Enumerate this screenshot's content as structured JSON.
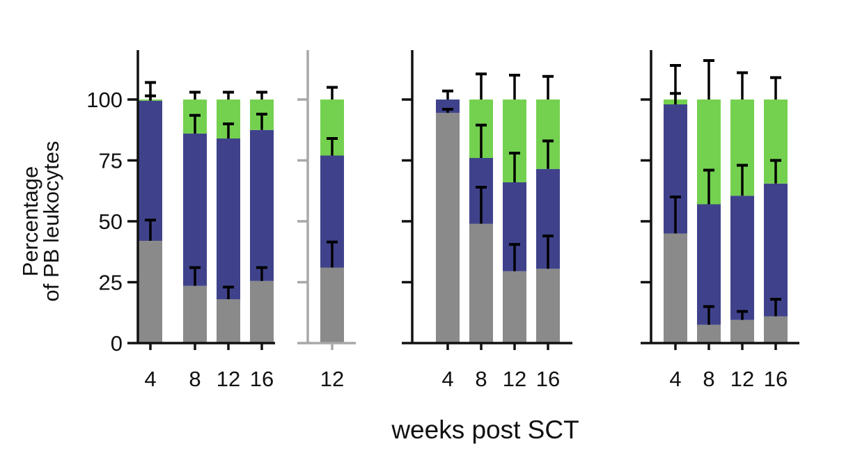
{
  "chart_data": {
    "type": "bar",
    "stacked": true,
    "title": "",
    "ylabel_lines": [
      "Percentage",
      "of PB leukocytes"
    ],
    "xlabel": "weeks post SCT",
    "ylim": [
      0,
      120
    ],
    "yticks": [
      0,
      25,
      50,
      75,
      100
    ],
    "colors": {
      "gray": "#8a8a8a",
      "blue": "#3f428b",
      "green": "#74d14f",
      "axis": "#111111",
      "axis_secondary": "#a8a8a8",
      "error": "#000000"
    },
    "series_order": [
      "gray",
      "blue",
      "green"
    ],
    "panels": [
      {
        "name": "panel-1",
        "axis_color": "axis",
        "show_tick_labels": true,
        "bars": [
          {
            "label": "4",
            "gray": 42,
            "blue": 57.5,
            "green": 0.5,
            "err_gray": 8.5,
            "err_blue_top": 2,
            "err_total": 7
          },
          {
            "label": "8",
            "gray": 23.5,
            "blue": 62.5,
            "green": 14,
            "err_gray": 7.5,
            "err_blue_top": 7.5,
            "err_total": 3
          },
          {
            "label": "12",
            "gray": 18,
            "blue": 66,
            "green": 16,
            "err_gray": 5,
            "err_blue_top": 6,
            "err_total": 3
          },
          {
            "label": "16",
            "gray": 25.5,
            "blue": 62,
            "green": 12.5,
            "err_gray": 5.5,
            "err_blue_top": 6.5,
            "err_total": 3
          }
        ]
      },
      {
        "name": "panel-2",
        "axis_color": "axis_secondary",
        "show_tick_labels": false,
        "bars": [
          {
            "label": "12",
            "gray": 31,
            "blue": 46,
            "green": 23,
            "err_gray": 10.5,
            "err_blue_top": 7,
            "err_total": 5
          }
        ]
      },
      {
        "name": "panel-3",
        "axis_color": "axis",
        "show_tick_labels": false,
        "bars": [
          {
            "label": "4",
            "gray": 94.5,
            "blue": 5.5,
            "green": 0,
            "err_gray": 1.5,
            "err_blue_top": 3.5,
            "err_total": 0
          },
          {
            "label": "8",
            "gray": 49,
            "blue": 27,
            "green": 24,
            "err_gray": 15,
            "err_blue_top": 13.5,
            "err_total": 10.5
          },
          {
            "label": "12",
            "gray": 29.5,
            "blue": 36.5,
            "green": 34,
            "err_gray": 11,
            "err_blue_top": 12,
            "err_total": 10
          },
          {
            "label": "16",
            "gray": 30.5,
            "blue": 41,
            "green": 28.5,
            "err_gray": 13.5,
            "err_blue_top": 11.5,
            "err_total": 9.5
          }
        ]
      },
      {
        "name": "panel-4",
        "axis_color": "axis",
        "show_tick_labels": false,
        "bars": [
          {
            "label": "4",
            "gray": 45,
            "blue": 53,
            "green": 2,
            "err_gray": 15,
            "err_blue_top": 4.5,
            "err_total": 14
          },
          {
            "label": "8",
            "gray": 7.5,
            "blue": 49.5,
            "green": 43,
            "err_gray": 7.5,
            "err_blue_top": 14,
            "err_total": 16
          },
          {
            "label": "12",
            "gray": 9.5,
            "blue": 51,
            "green": 39.5,
            "err_gray": 3.5,
            "err_blue_top": 12.5,
            "err_total": 11
          },
          {
            "label": "16",
            "gray": 11,
            "blue": 54.5,
            "green": 34.5,
            "err_gray": 7,
            "err_blue_top": 9.5,
            "err_total": 9
          }
        ]
      }
    ]
  }
}
